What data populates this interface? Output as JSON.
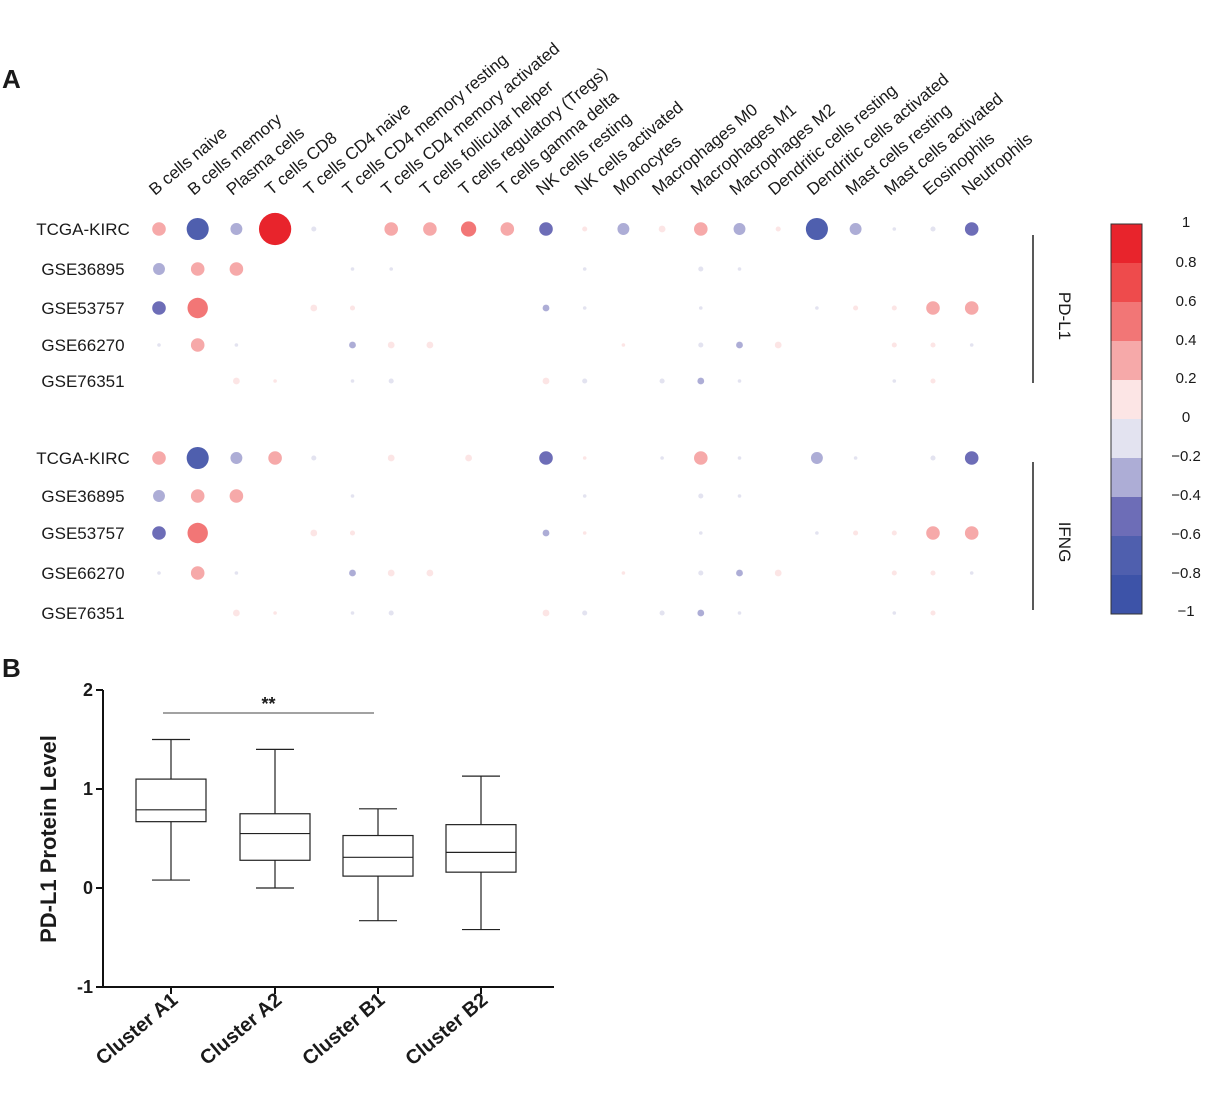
{
  "panels": {
    "a": "A",
    "b": "B"
  },
  "chart_data": [
    {
      "type": "bubble_heatmap",
      "panel": "A",
      "columns": [
        "B cells naive",
        "B cells memory",
        "Plasma cells",
        "T cells CD8",
        "T cells CD4 naive",
        "T cells CD4 memory resting",
        "T cells CD4 memory activated",
        "T cells follicular helper",
        "T cells regulatory (Tregs)",
        "T cells gamma delta",
        "NK cells resting",
        "NK cells activated",
        "Monocytes",
        "Macrophages M0",
        "Macrophages M1",
        "Macrophages M2",
        "Dendritic cells resting",
        "Dendritic cells activated",
        "Mast cells resting",
        "Mast cells activated",
        "Eosinophils",
        "Neutrophils"
      ],
      "groups": [
        {
          "name": "PD-L1",
          "rows": [
            {
              "label": "TCGA-KIRC",
              "values": [
                0.4,
                -0.65,
                -0.35,
                0.95,
                -0.15,
                null,
                0.4,
                0.4,
                0.45,
                0.4,
                -0.4,
                0.15,
                -0.35,
                0.2,
                0.4,
                -0.35,
                0.15,
                -0.65,
                -0.35,
                -0.1,
                -0.15,
                -0.4
              ]
            },
            {
              "label": "GSE36895",
              "values": [
                -0.35,
                0.4,
                0.4,
                null,
                null,
                -0.1,
                -0.1,
                null,
                null,
                null,
                null,
                -0.05,
                null,
                null,
                -0.15,
                -0.02,
                null,
                null,
                null,
                null,
                null,
                null
              ]
            },
            {
              "label": "GSE53757",
              "values": [
                -0.4,
                0.6,
                null,
                null,
                0.2,
                0.15,
                null,
                null,
                null,
                null,
                -0.2,
                -0.02,
                null,
                null,
                -0.1,
                null,
                null,
                -0.1,
                0.15,
                0.15,
                0.4,
                0.4
              ]
            },
            {
              "label": "GSE66270",
              "values": [
                -0.1,
                0.4,
                -0.1,
                null,
                null,
                -0.2,
                0.2,
                0.2,
                null,
                null,
                null,
                null,
                0.1,
                null,
                -0.15,
                -0.2,
                0.2,
                null,
                null,
                0.15,
                0.15,
                -0.05
              ]
            },
            {
              "label": "GSE76351",
              "values": [
                null,
                null,
                0.2,
                0.1,
                null,
                -0.1,
                -0.15,
                null,
                null,
                null,
                0.2,
                -0.15,
                null,
                -0.15,
                -0.2,
                -0.1,
                null,
                null,
                null,
                -0.1,
                0.15,
                null
              ]
            }
          ]
        },
        {
          "name": "IFNG",
          "rows": [
            {
              "label": "TCGA-KIRC",
              "values": [
                0.4,
                -0.65,
                -0.35,
                0.4,
                -0.15,
                null,
                0.2,
                null,
                0.2,
                null,
                -0.4,
                0.1,
                null,
                -0.05,
                0.4,
                -0.1,
                null,
                -0.35,
                -0.1,
                null,
                -0.15,
                -0.4
              ]
            },
            {
              "label": "GSE36895",
              "values": [
                -0.35,
                0.4,
                0.4,
                null,
                null,
                -0.1,
                null,
                null,
                null,
                null,
                null,
                -0.05,
                null,
                null,
                -0.15,
                -0.02,
                null,
                null,
                null,
                null,
                null,
                null
              ]
            },
            {
              "label": "GSE53757",
              "values": [
                -0.4,
                0.6,
                null,
                null,
                0.2,
                0.15,
                null,
                null,
                null,
                null,
                -0.2,
                0.02,
                null,
                null,
                -0.1,
                null,
                null,
                -0.1,
                0.15,
                0.15,
                0.4,
                0.4
              ]
            },
            {
              "label": "GSE66270",
              "values": [
                -0.1,
                0.4,
                -0.1,
                null,
                null,
                -0.2,
                0.2,
                0.2,
                null,
                null,
                null,
                null,
                0.1,
                null,
                -0.15,
                -0.2,
                0.2,
                null,
                null,
                0.15,
                0.15,
                -0.05
              ]
            },
            {
              "label": "GSE76351",
              "values": [
                null,
                null,
                0.2,
                0.1,
                null,
                -0.1,
                -0.15,
                null,
                null,
                null,
                0.2,
                -0.15,
                null,
                -0.15,
                -0.2,
                -0.1,
                null,
                null,
                null,
                -0.1,
                0.15,
                null
              ]
            }
          ]
        }
      ],
      "color_scale": {
        "range": [
          -1,
          1
        ],
        "ticks": [
          "1",
          "0.8",
          "0.6",
          "0.4",
          "0.2",
          "0",
          "−0.2",
          "−0.4",
          "−0.6",
          "−0.8",
          "−1"
        ],
        "colors_top_to_bottom": [
          "#e8242c",
          "#ee4b4c",
          "#f27676",
          "#f6a9a9",
          "#fce5e5",
          "#e3e3f0",
          "#adadd6",
          "#6d6db7",
          "#4f5fae",
          "#3d53a8"
        ]
      }
    },
    {
      "type": "box",
      "panel": "B",
      "ylabel": "PD-L1 Protein Level",
      "ylim": [
        -1,
        2
      ],
      "yticks": [
        "-1",
        "0",
        "1",
        "2"
      ],
      "categories": [
        "Cluster A1",
        "Cluster A2",
        "Cluster B1",
        "Cluster B2"
      ],
      "boxes": [
        {
          "min": 0.08,
          "q1": 0.67,
          "median": 0.79,
          "q3": 1.1,
          "max": 1.5
        },
        {
          "min": 0.0,
          "q1": 0.28,
          "median": 0.55,
          "q3": 0.75,
          "max": 1.4
        },
        {
          "min": -0.33,
          "q1": 0.12,
          "median": 0.31,
          "q3": 0.53,
          "max": 0.8
        },
        {
          "min": -0.42,
          "q1": 0.16,
          "median": 0.36,
          "q3": 0.64,
          "max": 1.13
        }
      ],
      "significance": {
        "from": "Cluster A1",
        "to": "Cluster B1",
        "label": "**"
      }
    }
  ]
}
